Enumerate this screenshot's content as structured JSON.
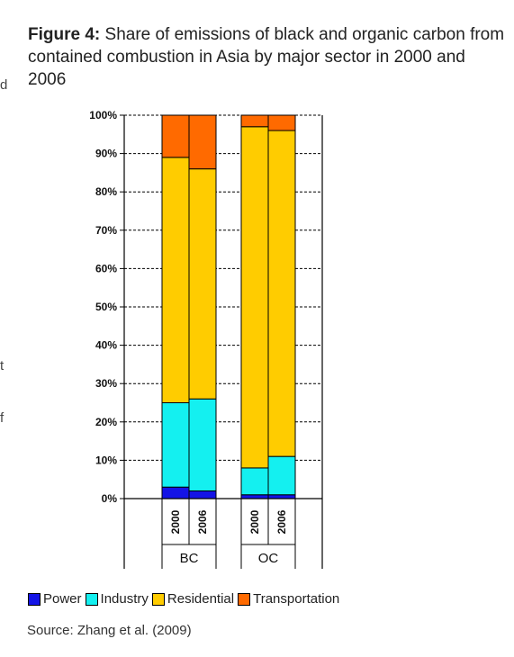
{
  "figure": {
    "label": "Figure 4:",
    "title": "Share of emissions of black and organic carbon from contained combustion in Asia by major sector in 2000 and 2006",
    "source": "Source: Zhang et al. (2009)"
  },
  "edge_text": [
    "d",
    "t",
    "f"
  ],
  "colors": {
    "Power": "#1414e6",
    "Industry": "#14f0f0",
    "Residential": "#ffcc00",
    "Transportation": "#ff6a00"
  },
  "chart_data": {
    "type": "bar",
    "stacked": true,
    "groups": [
      "BC",
      "OC"
    ],
    "categories": [
      "2000",
      "2006",
      "2000",
      "2006"
    ],
    "category_group": [
      "BC",
      "BC",
      "OC",
      "OC"
    ],
    "series": [
      {
        "name": "Power",
        "values": [
          3,
          2,
          1,
          1
        ]
      },
      {
        "name": "Industry",
        "values": [
          22,
          24,
          7,
          10
        ]
      },
      {
        "name": "Residential",
        "values": [
          64,
          60,
          89,
          85
        ]
      },
      {
        "name": "Transportation",
        "values": [
          11,
          14,
          3,
          4
        ]
      }
    ],
    "ylim": [
      0,
      100
    ],
    "yticks": [
      "0%",
      "10%",
      "20%",
      "30%",
      "40%",
      "50%",
      "60%",
      "70%",
      "80%",
      "90%",
      "100%"
    ],
    "grid": true,
    "legend_position": "bottom"
  }
}
